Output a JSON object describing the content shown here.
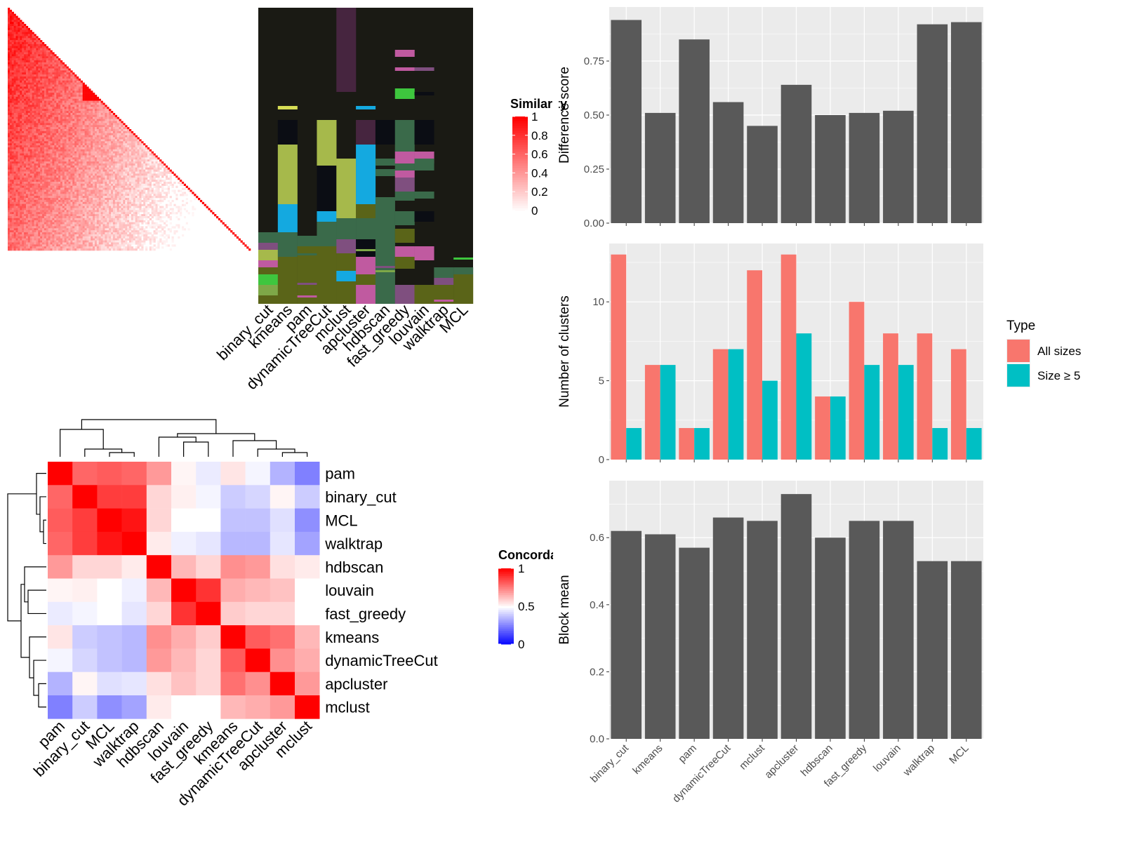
{
  "methods_bar": [
    "binary_cut",
    "kmeans",
    "pam",
    "dynamicTreeCut",
    "mclust",
    "apcluster",
    "hdbscan",
    "fast_greedy",
    "louvain",
    "walktrap",
    "MCL"
  ],
  "colors": {
    "panel_bg": "#ebebeb",
    "grid": "#ffffff",
    "bar": "#595959",
    "all_sizes": "#f8766d",
    "size_ge5": "#00bfc4",
    "class_bg": "#1a1a14"
  },
  "similarity_heatmap": {
    "legend_title": "Similarity",
    "legend_ticks": [
      "1",
      "0.8",
      "0.6",
      "0.4",
      "0.2",
      "0"
    ],
    "class_columns": [
      "binary_cut",
      "kmeans",
      "pam",
      "dynamicTreeCut",
      "mclust",
      "apcluster",
      "hdbscan",
      "fast_greedy",
      "louvain",
      "walktrap",
      "MCL"
    ]
  },
  "concordance_heatmap": {
    "legend_title": "Concordance",
    "legend_ticks": [
      "1",
      "0.5",
      "0"
    ],
    "row_labels": [
      "pam",
      "binary_cut",
      "MCL",
      "walktrap",
      "hdbscan",
      "louvain",
      "fast_greedy",
      "kmeans",
      "dynamicTreeCut",
      "apcluster",
      "mclust"
    ],
    "col_labels": [
      "pam",
      "binary_cut",
      "MCL",
      "walktrap",
      "hdbscan",
      "louvain",
      "fast_greedy",
      "kmeans",
      "dynamicTreeCut",
      "apcluster",
      "mclust"
    ],
    "matrix": [
      [
        1.0,
        0.8,
        0.82,
        0.8,
        0.7,
        0.52,
        0.46,
        0.55,
        0.48,
        0.35,
        0.25
      ],
      [
        0.8,
        1.0,
        0.88,
        0.88,
        0.58,
        0.53,
        0.48,
        0.4,
        0.42,
        0.52,
        0.4
      ],
      [
        0.82,
        0.88,
        1.0,
        0.96,
        0.58,
        0.5,
        0.5,
        0.38,
        0.38,
        0.44,
        0.28
      ],
      [
        0.8,
        0.88,
        0.96,
        1.0,
        0.54,
        0.47,
        0.45,
        0.36,
        0.36,
        0.45,
        0.32
      ],
      [
        0.7,
        0.58,
        0.58,
        0.54,
        1.0,
        0.64,
        0.58,
        0.72,
        0.7,
        0.56,
        0.54
      ],
      [
        0.52,
        0.53,
        0.5,
        0.47,
        0.64,
        1.0,
        0.9,
        0.66,
        0.64,
        0.62,
        0.5
      ],
      [
        0.46,
        0.48,
        0.5,
        0.45,
        0.58,
        0.9,
        1.0,
        0.6,
        0.58,
        0.58,
        0.5
      ],
      [
        0.55,
        0.4,
        0.38,
        0.36,
        0.72,
        0.66,
        0.6,
        1.0,
        0.82,
        0.78,
        0.64
      ],
      [
        0.48,
        0.42,
        0.38,
        0.36,
        0.7,
        0.64,
        0.58,
        0.82,
        1.0,
        0.72,
        0.66
      ],
      [
        0.35,
        0.52,
        0.44,
        0.45,
        0.56,
        0.62,
        0.58,
        0.78,
        0.72,
        1.0,
        0.7
      ],
      [
        0.25,
        0.4,
        0.28,
        0.32,
        0.54,
        0.5,
        0.5,
        0.64,
        0.66,
        0.7,
        1.0
      ]
    ]
  },
  "chart_data": [
    {
      "type": "bar",
      "categories": [
        "binary_cut",
        "kmeans",
        "pam",
        "dynamicTreeCut",
        "mclust",
        "apcluster",
        "hdbscan",
        "fast_greedy",
        "louvain",
        "walktrap",
        "MCL"
      ],
      "values": [
        0.94,
        0.51,
        0.85,
        0.56,
        0.45,
        0.64,
        0.5,
        0.51,
        0.52,
        0.92,
        0.93
      ],
      "ylabel": "Difference score",
      "ylim": [
        0,
        1.0
      ],
      "yticks": [
        "0.00",
        "0.25",
        "0.50",
        "0.75"
      ],
      "grid": true
    },
    {
      "type": "bar",
      "categories": [
        "binary_cut",
        "kmeans",
        "pam",
        "dynamicTreeCut",
        "mclust",
        "apcluster",
        "hdbscan",
        "fast_greedy",
        "louvain",
        "walktrap",
        "MCL"
      ],
      "series": [
        {
          "name": "All sizes",
          "values": [
            13,
            6,
            2,
            7,
            12,
            13,
            4,
            10,
            8,
            8,
            7
          ]
        },
        {
          "name": "Size ≥ 5",
          "values": [
            2,
            6,
            2,
            7,
            5,
            8,
            4,
            6,
            6,
            2,
            2
          ]
        }
      ],
      "ylabel": "Number of clusters",
      "ylim": [
        0,
        13.7
      ],
      "yticks": [
        "0",
        "5",
        "10"
      ],
      "legend_title": "Type",
      "legend_position": "right",
      "grid": true
    },
    {
      "type": "bar",
      "categories": [
        "binary_cut",
        "kmeans",
        "pam",
        "dynamicTreeCut",
        "mclust",
        "apcluster",
        "hdbscan",
        "fast_greedy",
        "louvain",
        "walktrap",
        "MCL"
      ],
      "values": [
        0.62,
        0.61,
        0.57,
        0.66,
        0.65,
        0.73,
        0.6,
        0.65,
        0.65,
        0.53,
        0.53
      ],
      "ylabel": "Block mean",
      "ylim": [
        0,
        0.77
      ],
      "yticks": [
        "0.0",
        "0.2",
        "0.4",
        "0.6"
      ],
      "grid": true
    }
  ]
}
